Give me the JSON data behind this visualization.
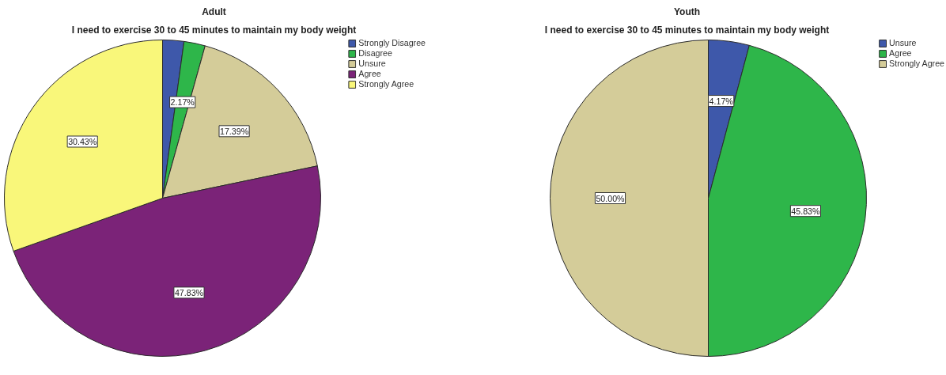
{
  "chart_data": [
    {
      "type": "pie",
      "title": "Adult",
      "subtitle": "I need to exercise 30 to 45 minutes to maintain my body weight",
      "categories": [
        "Strongly Disagree",
        "Disagree",
        "Unsure",
        "Agree",
        "Strongly Agree"
      ],
      "values": [
        2.17,
        2.17,
        17.39,
        47.83,
        30.43
      ],
      "colors": [
        "#3e58aa",
        "#2eb64a",
        "#d4cc99",
        "#7b2378",
        "#f9f77a"
      ],
      "value_labels": [
        null,
        "2.17%",
        "17.39%",
        "47.83%",
        "30.43%"
      ],
      "legend": "top right"
    },
    {
      "type": "pie",
      "title": "Youth",
      "subtitle": "I need to exercise 30 to 45 minutes to maintain my body weight",
      "categories": [
        "Unsure",
        "Agree",
        "Strongly Agree"
      ],
      "values": [
        4.17,
        45.83,
        50.0
      ],
      "colors": [
        "#3e58aa",
        "#2eb64a",
        "#d4cc99"
      ],
      "value_labels": [
        "4.17%",
        "45.83%",
        "50.00%"
      ],
      "legend": "top right"
    }
  ]
}
